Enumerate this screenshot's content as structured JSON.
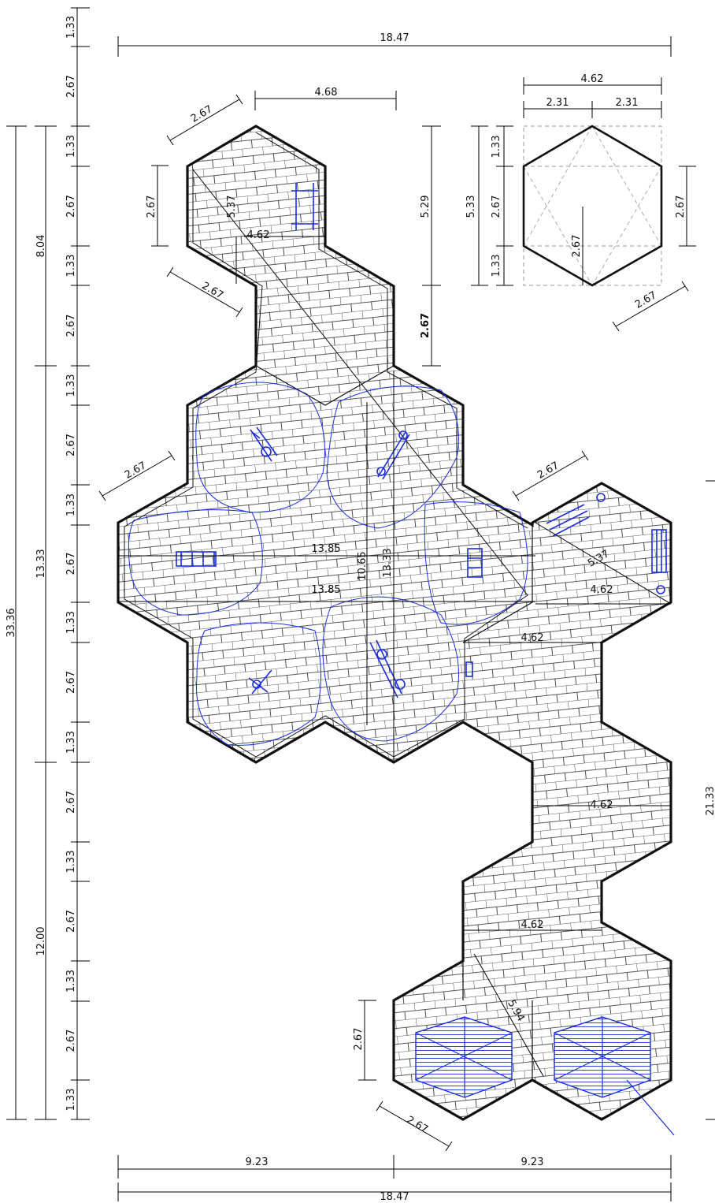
{
  "left_chain": {
    "labels": [
      "1.33",
      "2.67",
      "1.33",
      "2.67",
      "1.33",
      "2.67",
      "1.33",
      "2.67",
      "1.33",
      "2.67",
      "1.33",
      "2.67",
      "1.33",
      "2.67",
      "1.33",
      "2.67",
      "1.33",
      "2.67",
      "1.33",
      "2.67",
      "1.33",
      "2.67",
      "1.33",
      "2.67",
      "1.33",
      "2.67",
      "1.33",
      "1.33"
    ]
  },
  "left_groups": {
    "top": "8.04",
    "middle": "13.33",
    "bottom": "12.00",
    "total": "33.36"
  },
  "right_total": "21.33",
  "top_width": "18.47",
  "bottom_half_left": "9.23",
  "bottom_half_right": "9.23",
  "bottom_width": "18.47",
  "upper_hex": {
    "width": "4.68",
    "side": "2.67",
    "side2": "2.67",
    "height_left": "2.67",
    "diag": "5.37",
    "span": "4.62",
    "right_upper": "5.29",
    "right_lower": "2.67"
  },
  "center": {
    "side": "2.67",
    "width1": "13.85",
    "width2": "13.85",
    "height1": "10.65",
    "height2": "13.33"
  },
  "right_cluster": {
    "side": "2.67",
    "diag": "5.37",
    "w1": "4.62",
    "w2": "4.62",
    "w3": "4.62",
    "w4": "4.62"
  },
  "bottom_cluster": {
    "height": "2.67",
    "side": "2.67",
    "diag": "5.94"
  },
  "legend_hex": {
    "width": "4.62",
    "half_left": "2.31",
    "half_right": "2.31",
    "outer_height": "5.33",
    "seg_top": "1.33",
    "seg_mid": "2.67",
    "seg_bottom": "1.33",
    "right_side": "2.67",
    "inner": "2.67",
    "side_diag": "2.67"
  }
}
